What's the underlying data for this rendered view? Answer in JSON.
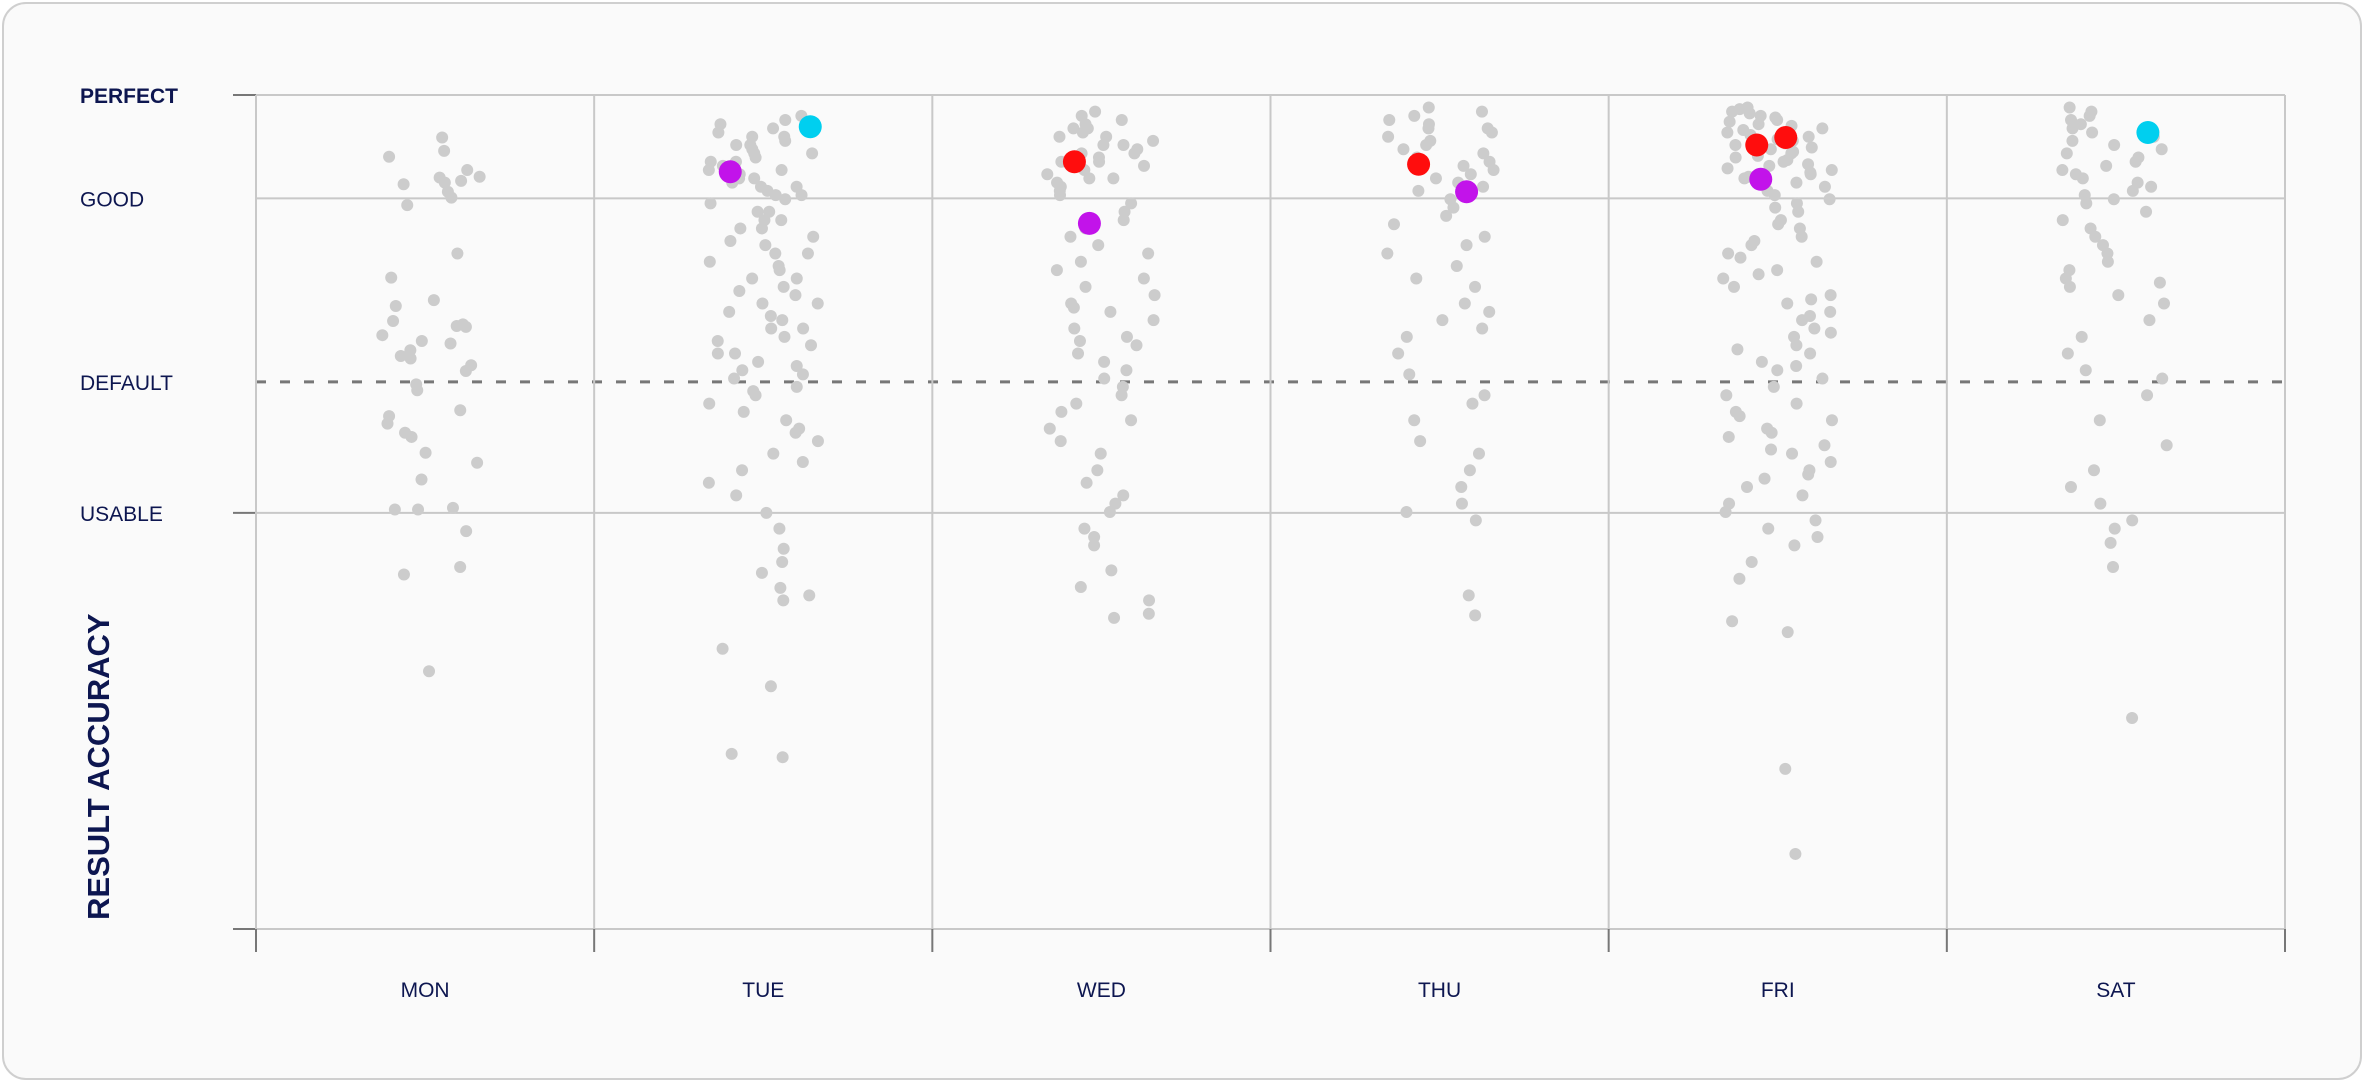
{
  "chart_data": {
    "type": "scatter",
    "subtype": "strip",
    "title": "",
    "xlabel": "",
    "ylabel": "RESULT ACCURACY",
    "ylim": [
      0,
      100
    ],
    "grid": true,
    "categories": [
      "MON",
      "TUE",
      "WED",
      "THU",
      "FRI",
      "SAT"
    ],
    "y_ticks": [
      {
        "label": "PERFECT",
        "value": 100,
        "bold": true
      },
      {
        "label": "GOOD",
        "value": 87.6,
        "bold": false
      },
      {
        "label": "DEFAULT",
        "value": 65.6,
        "bold": false,
        "reference_line": "dashed"
      },
      {
        "label": "USABLE",
        "value": 49.9,
        "bold": false
      }
    ],
    "base_color": "#cccccc",
    "series": [
      {
        "name": "MON",
        "values": [
          94.9,
          89.3,
          90.1,
          90.2,
          89.5,
          93.3,
          92.6,
          91.0,
          88.4,
          89.7,
          87.7,
          86.8,
          81.0,
          78.1,
          75.4,
          74.7,
          72.9,
          72.3,
          72.2,
          72.5,
          71.2,
          70.5,
          70.2,
          69.4,
          68.7,
          68.4,
          67.6,
          66.9,
          65.3,
          64.6,
          62.2,
          61.5,
          60.6,
          59.5,
          59.0,
          57.1,
          55.9,
          53.9,
          50.5,
          50.3,
          50.3,
          47.7,
          43.4,
          42.5,
          30.9
        ]
      },
      {
        "name": "TUE",
        "values": [
          97.5,
          97,
          96.5,
          96,
          95.5,
          95,
          95,
          94.5,
          94,
          94,
          93.5,
          93,
          93,
          92.5,
          92,
          92,
          91.5,
          91,
          91,
          90.5,
          90,
          90,
          89.5,
          89,
          89,
          88.5,
          88,
          88,
          87.5,
          87,
          86,
          86,
          85,
          85,
          84,
          84,
          83,
          82.5,
          82,
          81,
          81,
          80,
          79.5,
          79,
          78,
          78,
          77,
          76.5,
          76,
          75,
          75,
          74,
          73.5,
          73,
          72,
          72,
          71,
          70.5,
          70,
          69,
          69,
          68,
          67.5,
          67,
          66.5,
          66,
          65,
          64.5,
          64,
          63,
          62,
          61,
          60,
          59.5,
          58.5,
          57,
          56,
          55,
          53.5,
          52,
          49.9,
          48,
          45.6,
          44,
          42.7,
          40.9,
          40,
          39.4,
          33.6,
          29.1,
          21,
          20.6
        ]
      },
      {
        "name": "WED",
        "values": [
          98,
          97.5,
          97,
          96.5,
          96,
          96,
          95.5,
          95,
          95,
          94.5,
          94,
          94,
          93.5,
          93,
          93,
          92.5,
          92,
          92,
          91.5,
          91,
          90.5,
          90,
          90,
          89.5,
          89,
          88.5,
          88,
          87,
          86,
          85,
          84,
          83,
          82,
          81,
          80,
          79,
          78,
          77,
          76,
          75,
          74.5,
          74,
          73,
          72,
          71,
          70.5,
          70,
          69,
          68,
          67,
          66,
          65,
          64,
          63,
          62,
          61,
          60,
          58.5,
          57,
          55,
          53.5,
          52,
          51,
          50,
          48,
          47,
          46,
          43,
          41,
          39.4,
          37.8,
          37.3
        ]
      },
      {
        "name": "THU",
        "values": [
          98.5,
          98,
          97.5,
          97,
          96.5,
          96,
          96,
          95.5,
          95,
          94.5,
          94,
          93.5,
          93,
          92.5,
          92,
          91.5,
          91,
          90.5,
          90,
          89.5,
          89,
          88.5,
          88,
          87.5,
          86.5,
          85.5,
          84.5,
          83,
          82,
          81,
          79.5,
          78,
          77,
          75,
          74,
          73,
          72,
          71,
          69,
          66.5,
          64,
          63,
          61,
          58.5,
          57,
          55,
          53,
          51,
          50,
          49,
          37.6,
          40
        ]
      },
      {
        "name": "FRI",
        "values": [
          98.5,
          98.3,
          98,
          97.8,
          97.5,
          97.3,
          97,
          96.8,
          96.5,
          96.3,
          96,
          95.8,
          95.5,
          95.2,
          95,
          94.7,
          94.5,
          94.2,
          94,
          93.7,
          93.5,
          93.2,
          93,
          92.7,
          92.5,
          92.2,
          92,
          91.7,
          91.5,
          91.2,
          91,
          90.7,
          90.5,
          90.2,
          90,
          89.5,
          89,
          88.5,
          88,
          87.5,
          87,
          86.5,
          86,
          85,
          84.5,
          84,
          83,
          82.5,
          82,
          81,
          80.5,
          80,
          79,
          78.5,
          78,
          77,
          76,
          75.5,
          75,
          74,
          73.5,
          73,
          72,
          71.5,
          71,
          70,
          69.5,
          69,
          68,
          67.5,
          67,
          66,
          65,
          64,
          63,
          62,
          61.5,
          61,
          60,
          59.5,
          59,
          58,
          57.5,
          57,
          56,
          55,
          54.5,
          54,
          53,
          52,
          51,
          50,
          49,
          48,
          47,
          46,
          44,
          42,
          36.9,
          35.6,
          19.2,
          9.0
        ]
      },
      {
        "name": "SAT",
        "values": [
          98.5,
          98,
          97.5,
          97,
          96.5,
          96,
          95.5,
          95,
          94.5,
          94,
          93.5,
          93,
          92.5,
          92,
          91.5,
          91,
          90.5,
          90,
          89.5,
          89,
          88.5,
          88,
          87.5,
          87,
          86,
          85,
          84,
          83,
          82,
          81,
          80,
          79,
          78,
          77.5,
          77,
          76,
          75,
          73,
          71,
          69,
          67,
          66,
          64,
          61,
          58,
          55,
          53,
          51,
          49,
          48,
          46.3,
          43.4,
          25.3
        ]
      }
    ],
    "highlights": [
      {
        "day": "TUE",
        "value": 96.2,
        "color": "#00cfef"
      },
      {
        "day": "TUE",
        "value": 90.8,
        "color": "#c213ea"
      },
      {
        "day": "WED",
        "value": 92.0,
        "color": "#ff0d0d"
      },
      {
        "day": "WED",
        "value": 84.6,
        "color": "#c213ea"
      },
      {
        "day": "THU",
        "value": 91.7,
        "color": "#ff0d0d"
      },
      {
        "day": "THU",
        "value": 88.4,
        "color": "#c213ea"
      },
      {
        "day": "FRI",
        "value": 94.0,
        "color": "#ff0d0d"
      },
      {
        "day": "FRI",
        "value": 94.9,
        "color": "#ff0d0d"
      },
      {
        "day": "FRI",
        "value": 89.9,
        "color": "#c213ea"
      },
      {
        "day": "SAT",
        "value": 95.5,
        "color": "#00cfef"
      }
    ],
    "text_color": "#0d1650"
  }
}
